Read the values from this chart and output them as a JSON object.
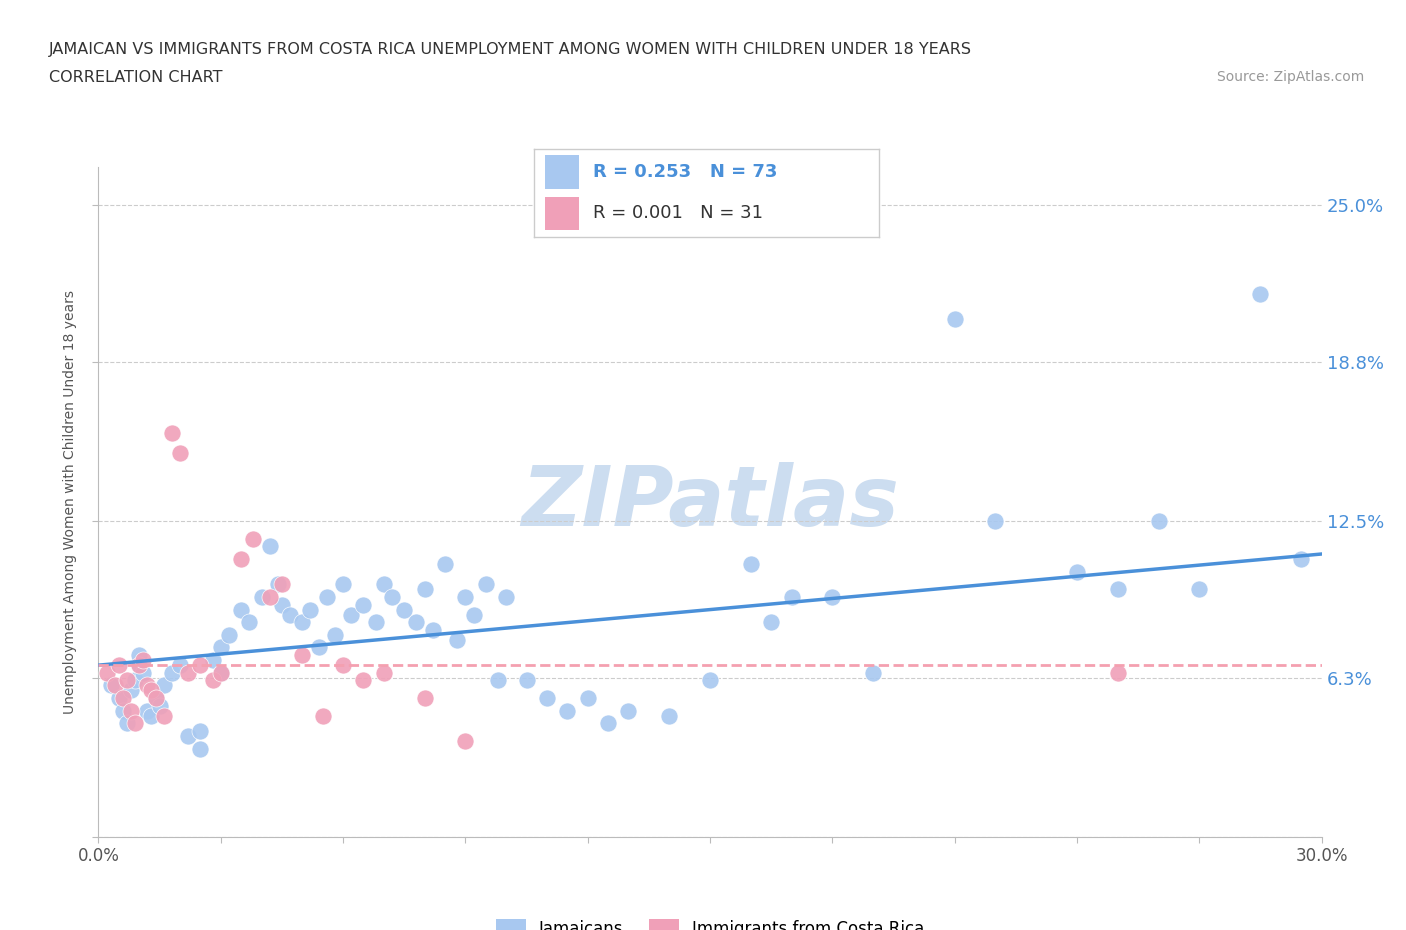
{
  "title_line1": "JAMAICAN VS IMMIGRANTS FROM COSTA RICA UNEMPLOYMENT AMONG WOMEN WITH CHILDREN UNDER 18 YEARS",
  "title_line2": "CORRELATION CHART",
  "source_text": "Source: ZipAtlas.com",
  "ylabel": "Unemployment Among Women with Children Under 18 years",
  "xlim": [
    0.0,
    0.3
  ],
  "ylim": [
    0.0,
    0.265
  ],
  "yticks": [
    0.0,
    0.063,
    0.125,
    0.188,
    0.25
  ],
  "ytick_labels": [
    "",
    "6.3%",
    "12.5%",
    "18.8%",
    "25.0%"
  ],
  "xticks": [
    0.0,
    0.03,
    0.06,
    0.09,
    0.12,
    0.15,
    0.18,
    0.21,
    0.24,
    0.27,
    0.3
  ],
  "xtick_labels": [
    "0.0%",
    "",
    "",
    "",
    "",
    "",
    "",
    "",
    "",
    "",
    "30.0%"
  ],
  "legend_r1": "R = 0.253",
  "legend_n1": "N = 73",
  "legend_r2": "R = 0.001",
  "legend_n2": "N = 31",
  "color_blue": "#a8c8f0",
  "color_pink": "#f0a0b8",
  "color_blue_text": "#4a90d9",
  "line_color_blue": "#4a90d9",
  "line_color_pink": "#f4a0b0",
  "watermark_color": "#ccddf0",
  "grid_color": "#cccccc",
  "jamaicans_x": [
    0.003,
    0.005,
    0.006,
    0.007,
    0.008,
    0.009,
    0.01,
    0.01,
    0.011,
    0.012,
    0.013,
    0.014,
    0.015,
    0.016,
    0.018,
    0.02,
    0.022,
    0.025,
    0.025,
    0.028,
    0.03,
    0.03,
    0.032,
    0.035,
    0.037,
    0.04,
    0.042,
    0.044,
    0.045,
    0.047,
    0.05,
    0.052,
    0.054,
    0.056,
    0.058,
    0.06,
    0.062,
    0.065,
    0.068,
    0.07,
    0.072,
    0.075,
    0.078,
    0.08,
    0.082,
    0.085,
    0.088,
    0.09,
    0.092,
    0.095,
    0.098,
    0.1,
    0.105,
    0.11,
    0.115,
    0.12,
    0.125,
    0.13,
    0.14,
    0.15,
    0.16,
    0.165,
    0.17,
    0.18,
    0.19,
    0.21,
    0.22,
    0.24,
    0.25,
    0.26,
    0.27,
    0.285,
    0.295
  ],
  "jamaicans_y": [
    0.06,
    0.055,
    0.05,
    0.045,
    0.058,
    0.062,
    0.068,
    0.072,
    0.065,
    0.05,
    0.048,
    0.055,
    0.052,
    0.06,
    0.065,
    0.068,
    0.04,
    0.035,
    0.042,
    0.07,
    0.075,
    0.065,
    0.08,
    0.09,
    0.085,
    0.095,
    0.115,
    0.1,
    0.092,
    0.088,
    0.085,
    0.09,
    0.075,
    0.095,
    0.08,
    0.1,
    0.088,
    0.092,
    0.085,
    0.1,
    0.095,
    0.09,
    0.085,
    0.098,
    0.082,
    0.108,
    0.078,
    0.095,
    0.088,
    0.1,
    0.062,
    0.095,
    0.062,
    0.055,
    0.05,
    0.055,
    0.045,
    0.05,
    0.048,
    0.062,
    0.108,
    0.085,
    0.095,
    0.095,
    0.065,
    0.205,
    0.125,
    0.105,
    0.098,
    0.125,
    0.098,
    0.215,
    0.11
  ],
  "costarica_x": [
    0.002,
    0.004,
    0.005,
    0.006,
    0.007,
    0.008,
    0.009,
    0.01,
    0.011,
    0.012,
    0.013,
    0.014,
    0.016,
    0.018,
    0.02,
    0.022,
    0.025,
    0.028,
    0.03,
    0.035,
    0.038,
    0.042,
    0.045,
    0.05,
    0.055,
    0.06,
    0.065,
    0.07,
    0.08,
    0.09,
    0.25
  ],
  "costarica_y": [
    0.065,
    0.06,
    0.068,
    0.055,
    0.062,
    0.05,
    0.045,
    0.068,
    0.07,
    0.06,
    0.058,
    0.055,
    0.048,
    0.16,
    0.152,
    0.065,
    0.068,
    0.062,
    0.065,
    0.11,
    0.118,
    0.095,
    0.1,
    0.072,
    0.048,
    0.068,
    0.062,
    0.065,
    0.055,
    0.038,
    0.065
  ],
  "blue_trend_x": [
    0.0,
    0.3
  ],
  "blue_trend_y": [
    0.068,
    0.112
  ],
  "pink_trend_x": [
    0.0,
    0.3
  ],
  "pink_trend_y": [
    0.068,
    0.068
  ]
}
